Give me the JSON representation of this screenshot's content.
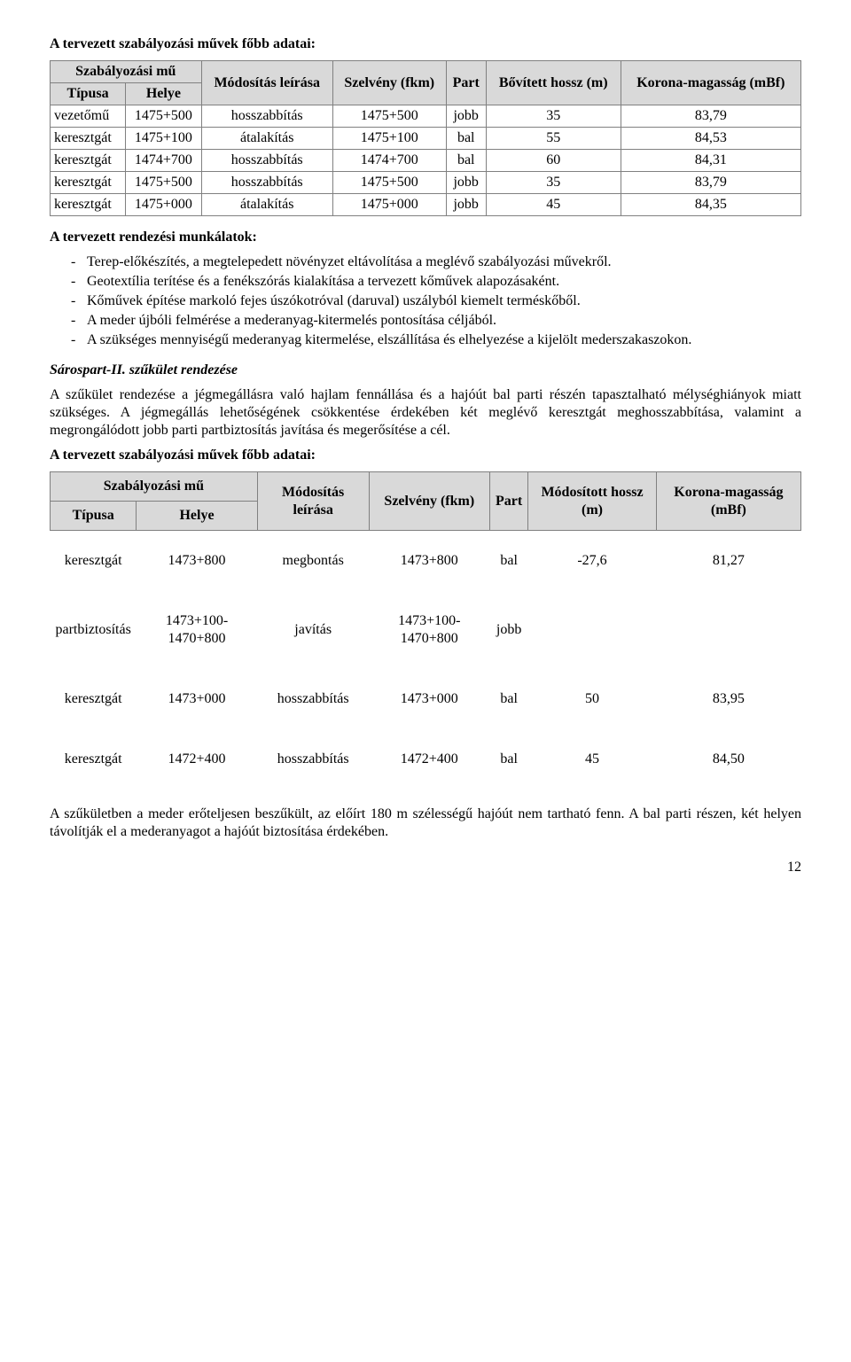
{
  "heading1": "A tervezett szabályozási művek főbb adatai:",
  "table1": {
    "headers": {
      "group": "Szabályozási mű",
      "tipusa": "Típusa",
      "helye": "Helye",
      "modositas": "Módosítás leírása",
      "szelveny": "Szelvény (fkm)",
      "part": "Part",
      "hossz": "Bővített hossz (m)",
      "korona": "Korona-magasság (mBf)"
    },
    "rows": [
      [
        "vezetőmű",
        "1475+500",
        "hosszabbítás",
        "1475+500",
        "jobb",
        "35",
        "83,79"
      ],
      [
        "keresztgát",
        "1475+100",
        "átalakítás",
        "1475+100",
        "bal",
        "55",
        "84,53"
      ],
      [
        "keresztgát",
        "1474+700",
        "hosszabbítás",
        "1474+700",
        "bal",
        "60",
        "84,31"
      ],
      [
        "keresztgát",
        "1475+500",
        "hosszabbítás",
        "1475+500",
        "jobb",
        "35",
        "83,79"
      ],
      [
        "keresztgát",
        "1475+000",
        "átalakítás",
        "1475+000",
        "jobb",
        "45",
        "84,35"
      ]
    ]
  },
  "list_heading": "A tervezett rendezési munkálatok:",
  "bullets": [
    "Terep-előkészítés, a megtelepedett növényzet eltávolítása a meglévő szabályozási művekről.",
    "Geotextília terítése és a fenékszórás kialakítása a tervezett kőművek alapozásaként.",
    "Kőművek építése markoló fejes úszókotróval (daruval) uszályból kiemelt terméskőből.",
    "A meder újbóli felmérése a mederanyag-kitermelés pontosítása céljából.",
    "A szükséges mennyiségű mederanyag kitermelése, elszállítása és elhelyezése a kijelölt mederszakaszokon."
  ],
  "section2_title": "Sárospart-II. szűkület rendezése",
  "section2_body": "A szűkület rendezése a jégmegállásra való hajlam fennállása és a hajóút bal parti részén tapasztalható mélységhiányok miatt szükséges. A jégmegállás lehetőségének csökkentése érdekében két meglévő keresztgát meghosszabbítása, valamint a megrongálódott jobb parti partbiztosítás javítása és megerősítése a cél.",
  "heading2": "A tervezett szabályozási művek főbb adatai:",
  "table2": {
    "headers": {
      "group": "Szabályozási mű",
      "tipusa": "Típusa",
      "helye": "Helye",
      "modositas": "Módosítás leírása",
      "szelveny": "Szelvény (fkm)",
      "part": "Part",
      "hossz": "Módosított hossz (m)",
      "korona": "Korona-magasság (mBf)"
    },
    "rows": [
      [
        "keresztgát",
        "1473+800",
        "megbontás",
        "1473+800",
        "bal",
        "-27,6",
        "81,27"
      ],
      [
        "partbiztosítás",
        "1473+100-1470+800",
        "javítás",
        "1473+100-1470+800",
        "jobb",
        "",
        ""
      ],
      [
        "keresztgát",
        "1473+000",
        "hosszabbítás",
        "1473+000",
        "bal",
        "50",
        "83,95"
      ],
      [
        "keresztgát",
        "1472+400",
        "hosszabbítás",
        "1472+400",
        "bal",
        "45",
        "84,50"
      ]
    ]
  },
  "closing": "A szűkületben a meder erőteljesen beszűkült, az előírt 180 m szélességű hajóút nem tartható fenn. A bal parti részen, két helyen távolítják el a mederanyagot a hajóút biztosítása érdekében.",
  "page": "12"
}
